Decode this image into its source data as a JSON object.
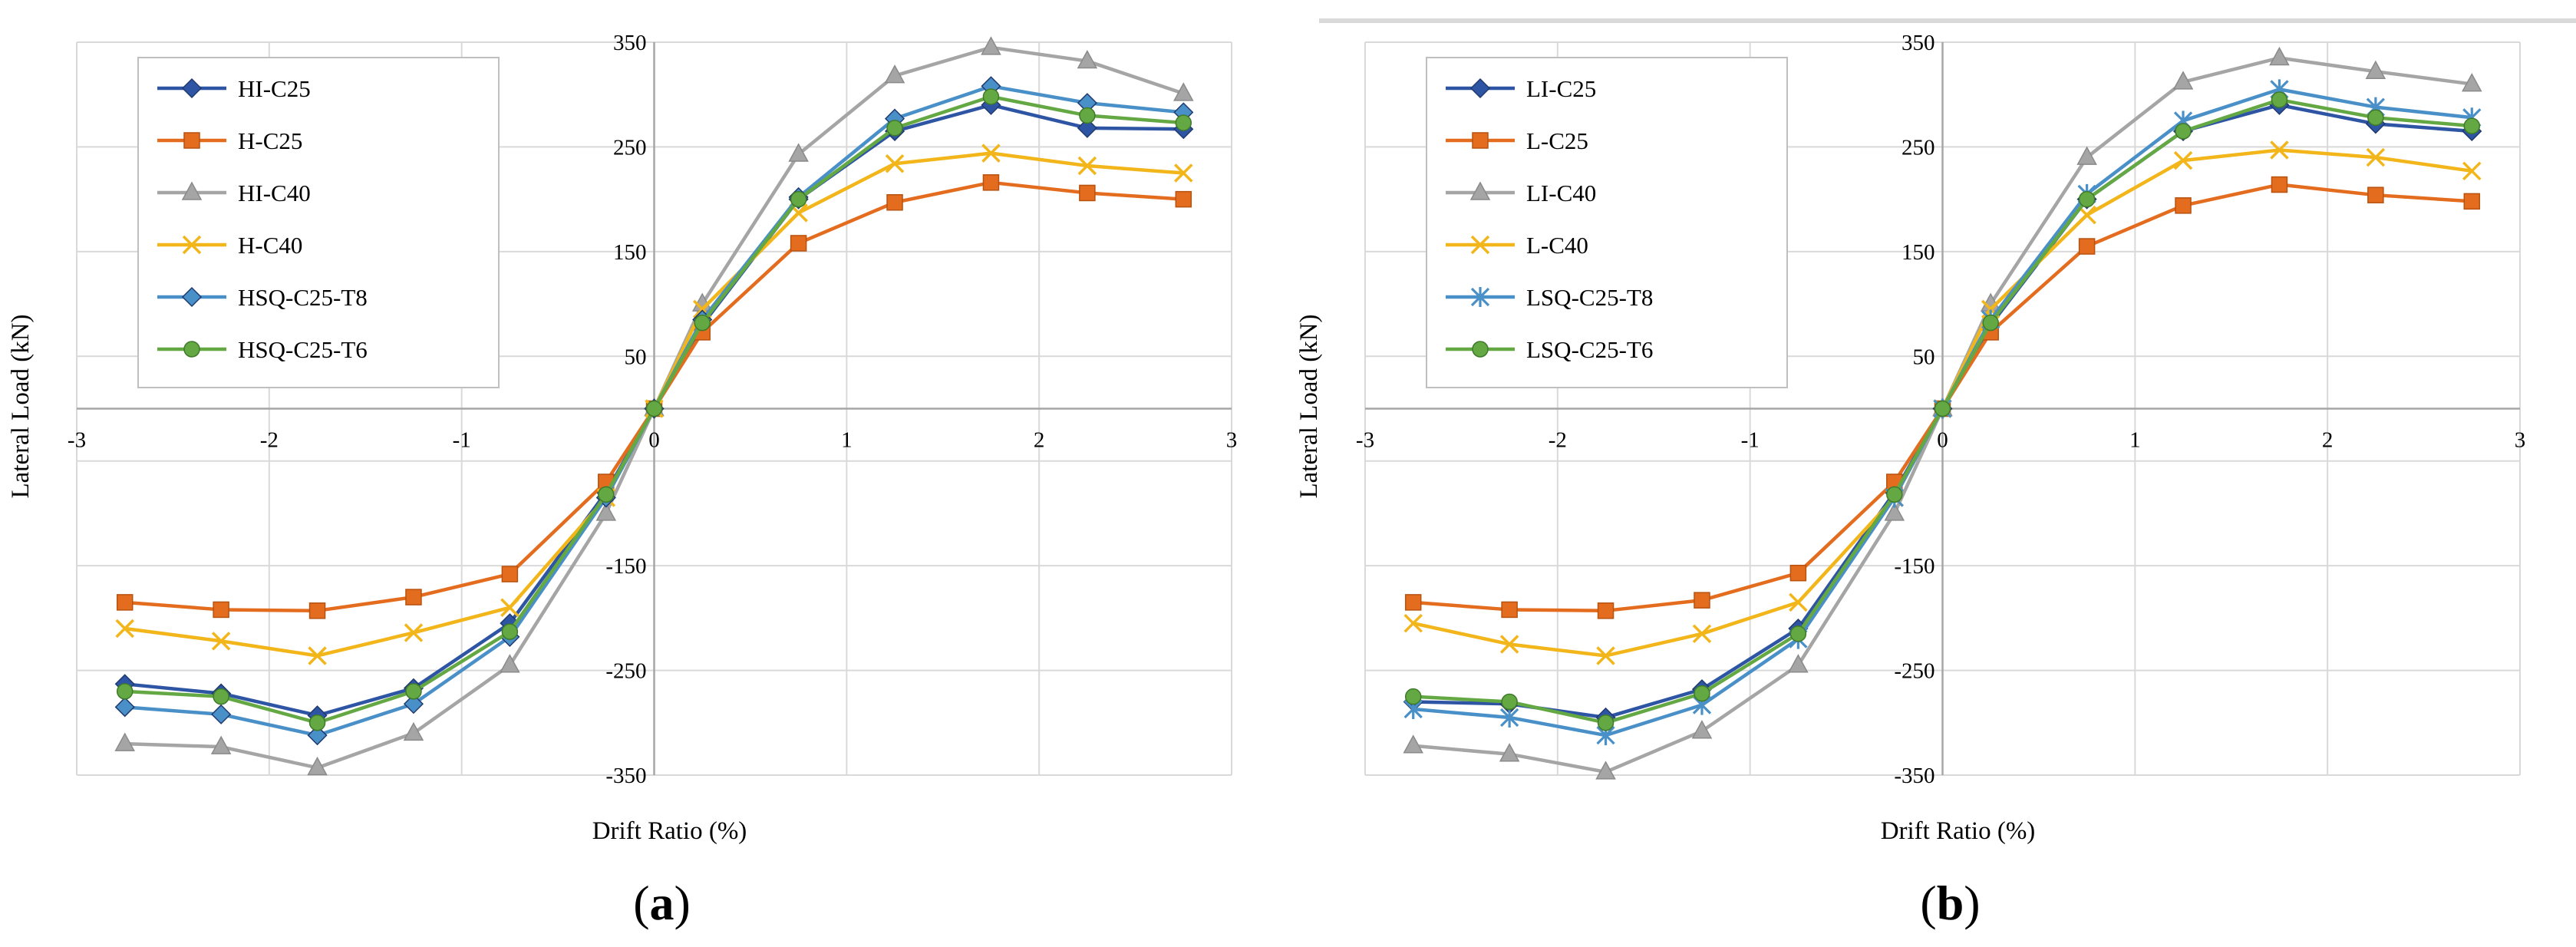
{
  "chart_data": [
    {
      "type": "line",
      "panel_label": [
        "(",
        "a",
        ")"
      ],
      "xlabel": "Drift Ratio (%)",
      "ylabel": "Lateral Load (kN)",
      "xlim": [
        -3,
        3
      ],
      "ylim": [
        -350,
        350
      ],
      "x_ticks": [
        -3,
        -2,
        -1,
        0,
        1,
        2,
        3
      ],
      "y_ticks": [
        -350,
        -250,
        -150,
        50,
        150,
        250,
        350
      ],
      "grid": true,
      "legend_position": "top-left",
      "x": [
        -2.75,
        -2.25,
        -1.75,
        -1.25,
        -0.75,
        -0.25,
        0,
        0.25,
        0.75,
        1.25,
        1.75,
        2.25,
        2.75
      ],
      "series": [
        {
          "name": "HI-C25",
          "color": "#2E55A4",
          "marker": "diamond",
          "values": [
            -263,
            -272,
            -293,
            -267,
            -205,
            -80,
            0,
            80,
            200,
            265,
            290,
            268,
            267
          ]
        },
        {
          "name": "H-C25",
          "color": "#E46C1E",
          "marker": "square",
          "values": [
            -185,
            -192,
            -193,
            -180,
            -158,
            -70,
            0,
            73,
            158,
            197,
            216,
            206,
            200
          ]
        },
        {
          "name": "HI-C40",
          "color": "#A5A5A5",
          "marker": "triangle",
          "values": [
            -320,
            -323,
            -343,
            -310,
            -245,
            -100,
            0,
            100,
            243,
            318,
            345,
            332,
            301
          ]
        },
        {
          "name": "H-C40",
          "color": "#F2B51A",
          "marker": "x",
          "values": [
            -210,
            -222,
            -236,
            -214,
            -190,
            -85,
            0,
            95,
            187,
            234,
            244,
            232,
            225
          ]
        },
        {
          "name": "HSQ-C25-T8",
          "color": "#4A90C8",
          "marker": "diamond",
          "values": [
            -285,
            -292,
            -312,
            -282,
            -218,
            -85,
            0,
            85,
            202,
            277,
            308,
            292,
            283
          ]
        },
        {
          "name": "HSQ-C25-T6",
          "color": "#64A844",
          "marker": "circle",
          "values": [
            -270,
            -275,
            -300,
            -270,
            -213,
            -82,
            0,
            82,
            200,
            268,
            298,
            280,
            273
          ]
        }
      ]
    },
    {
      "type": "line",
      "panel_label": [
        "(",
        "b",
        ")"
      ],
      "xlabel": "Drift Ratio (%)",
      "ylabel": "Lateral Load (kN)",
      "xlim": [
        -3,
        3
      ],
      "ylim": [
        -350,
        350
      ],
      "x_ticks": [
        -3,
        -2,
        -1,
        0,
        1,
        2,
        3
      ],
      "y_ticks": [
        -350,
        -250,
        -150,
        50,
        150,
        250,
        350
      ],
      "grid": true,
      "legend_position": "top-left",
      "x": [
        -2.75,
        -2.25,
        -1.75,
        -1.25,
        -0.75,
        -0.25,
        0,
        0.25,
        0.75,
        1.25,
        1.75,
        2.25,
        2.75
      ],
      "series": [
        {
          "name": "LI-C25",
          "color": "#2E55A4",
          "marker": "diamond",
          "values": [
            -280,
            -282,
            -295,
            -268,
            -210,
            -80,
            0,
            80,
            200,
            265,
            290,
            272,
            265
          ]
        },
        {
          "name": "L-C25",
          "color": "#E46C1E",
          "marker": "square",
          "values": [
            -185,
            -192,
            -193,
            -183,
            -157,
            -70,
            0,
            73,
            155,
            194,
            214,
            204,
            198
          ]
        },
        {
          "name": "LI-C40",
          "color": "#A5A5A5",
          "marker": "triangle",
          "values": [
            -322,
            -330,
            -347,
            -308,
            -245,
            -100,
            0,
            100,
            240,
            312,
            335,
            322,
            310
          ]
        },
        {
          "name": "L-C40",
          "color": "#F2B51A",
          "marker": "x",
          "values": [
            -205,
            -225,
            -236,
            -215,
            -185,
            -85,
            0,
            95,
            185,
            237,
            247,
            240,
            227
          ]
        },
        {
          "name": "LSQ-C25-T8",
          "color": "#4A90C8",
          "marker": "asterisk",
          "values": [
            -287,
            -295,
            -312,
            -283,
            -220,
            -85,
            0,
            85,
            205,
            275,
            305,
            288,
            278
          ]
        },
        {
          "name": "LSQ-C25-T6",
          "color": "#64A844",
          "marker": "circle",
          "values": [
            -275,
            -280,
            -300,
            -272,
            -215,
            -82,
            0,
            82,
            200,
            265,
            295,
            278,
            270
          ]
        }
      ]
    }
  ]
}
